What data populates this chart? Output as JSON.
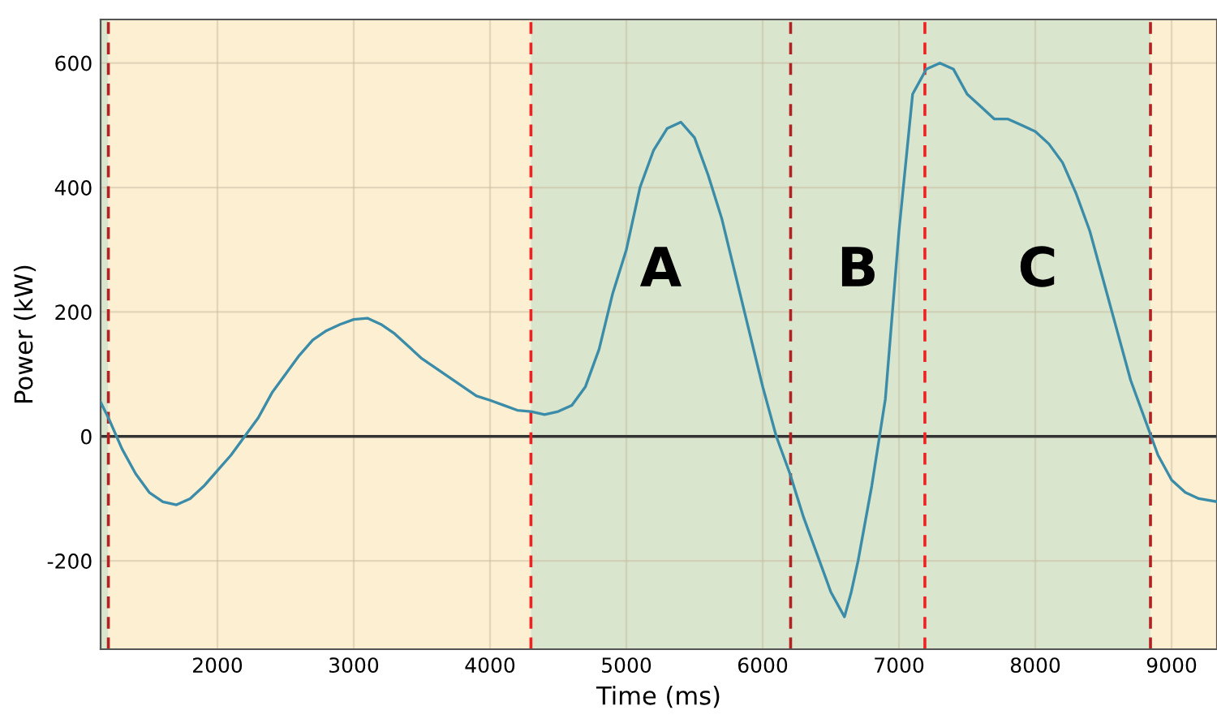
{
  "chart_data": {
    "type": "line",
    "xlabel": "Time (ms)",
    "ylabel": "Power (kW)",
    "xlim": [
      1143,
      9333
    ],
    "ylim": [
      -342,
      670
    ],
    "xticks": [
      2000,
      3000,
      4000,
      5000,
      6000,
      7000,
      8000,
      9000
    ],
    "yticks": [
      {
        "value": -200,
        "label": "-200"
      },
      0,
      200,
      400,
      600
    ],
    "grid": true,
    "legend": false,
    "series": [
      {
        "color": "#3a8ca8",
        "x": [
          1143,
          1200,
          1300,
          1400,
          1500,
          1600,
          1700,
          1800,
          1900,
          2000,
          2100,
          2200,
          2300,
          2400,
          2500,
          2600,
          2700,
          2800,
          2900,
          3000,
          3100,
          3200,
          3300,
          3400,
          3500,
          3600,
          3700,
          3800,
          3900,
          4000,
          4100,
          4200,
          4300,
          4400,
          4500,
          4600,
          4700,
          4800,
          4900,
          5000,
          5100,
          5200,
          5300,
          5400,
          5500,
          5600,
          5700,
          5800,
          5900,
          6000,
          6100,
          6200,
          6300,
          6400,
          6500,
          6600,
          6650,
          6700,
          6800,
          6900,
          7000,
          7100,
          7200,
          7300,
          7400,
          7500,
          7600,
          7700,
          7800,
          7900,
          8000,
          8100,
          8200,
          8300,
          8400,
          8500,
          8600,
          8700,
          8800,
          8850,
          8900,
          9000,
          9100,
          9200,
          9333
        ],
        "values": [
          55,
          30,
          -20,
          -60,
          -90,
          -105,
          -110,
          -100,
          -80,
          -55,
          -30,
          0,
          30,
          70,
          100,
          130,
          155,
          170,
          180,
          188,
          190,
          180,
          165,
          145,
          125,
          110,
          95,
          80,
          65,
          58,
          50,
          42,
          40,
          35,
          40,
          50,
          80,
          140,
          230,
          300,
          400,
          460,
          495,
          505,
          480,
          420,
          350,
          260,
          170,
          80,
          0,
          -60,
          -130,
          -190,
          -250,
          -290,
          -250,
          -200,
          -80,
          60,
          330,
          550,
          590,
          600,
          590,
          550,
          530,
          510,
          510,
          500,
          490,
          470,
          440,
          390,
          330,
          250,
          170,
          90,
          30,
          0,
          -30,
          -70,
          -90,
          -100,
          -105
        ]
      }
    ],
    "ref_lines": [
      {
        "axis": "y",
        "value": 0,
        "color": "#333333",
        "line_style": "solid"
      },
      {
        "axis": "x",
        "value": 1200,
        "color": "#b22222",
        "line_style": "dashed"
      },
      {
        "axis": "x",
        "value": 4300,
        "color": "#ee2222",
        "line_style": "dashed"
      },
      {
        "axis": "x",
        "value": 6205,
        "color": "#b22222",
        "line_style": "dashed"
      },
      {
        "axis": "x",
        "value": 7190,
        "color": "#ee2222",
        "line_style": "dashed"
      },
      {
        "axis": "x",
        "value": 8845,
        "color": "#b22222",
        "line_style": "dashed"
      }
    ],
    "bands": [
      {
        "axis": "x",
        "from": 1143,
        "to": 1200,
        "color": "#d9e5cc"
      },
      {
        "axis": "x",
        "from": 1200,
        "to": 4300,
        "color": "#fdefd2"
      },
      {
        "axis": "x",
        "from": 4300,
        "to": 8845,
        "color": "#d9e5cc"
      },
      {
        "axis": "x",
        "from": 8845,
        "to": 9333,
        "color": "#fdefd2"
      }
    ],
    "annotations": [
      "A",
      "B",
      "C"
    ]
  }
}
